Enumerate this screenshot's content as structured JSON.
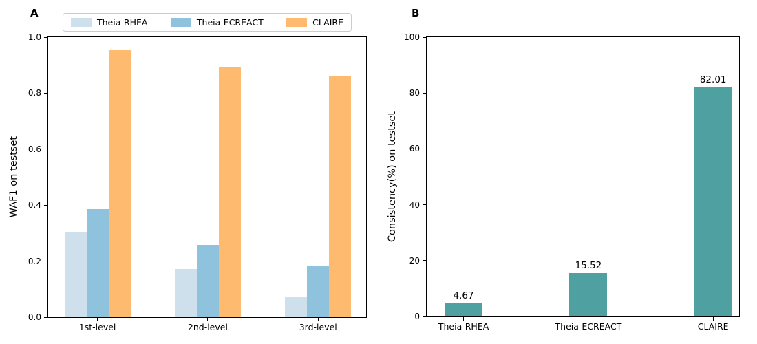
{
  "figure": {
    "background": "#ffffff",
    "spine_color": "#000000"
  },
  "chart_data": [
    {
      "type": "bar",
      "panel_label": "A",
      "title": "",
      "xlabel": "",
      "ylabel": "WAF1 on testset",
      "categories": [
        "1st-level",
        "2nd-level",
        "3rd-level"
      ],
      "series": [
        {
          "name": "Theia-RHEA",
          "color": "#cde0ec",
          "values": [
            0.305,
            0.171,
            0.072
          ]
        },
        {
          "name": "Theia-ECREACT",
          "color": "#8fc2dc",
          "values": [
            0.385,
            0.257,
            0.185
          ]
        },
        {
          "name": "CLAIRE",
          "color": "#febb70",
          "values": [
            0.956,
            0.895,
            0.86
          ]
        }
      ],
      "ylim": [
        0,
        1.0
      ],
      "yticks": [
        0.0,
        0.2,
        0.4,
        0.6,
        0.8,
        1.0
      ],
      "ytick_labels": [
        "0.0",
        "0.2",
        "0.4",
        "0.6",
        "0.8",
        "1.0"
      ],
      "grid": false,
      "legend_position": "top"
    },
    {
      "type": "bar",
      "panel_label": "B",
      "title": "",
      "xlabel": "",
      "ylabel": "Consistency(%) on testset",
      "categories": [
        "Theia-RHEA",
        "Theia-ECREACT",
        "CLAIRE"
      ],
      "series": [
        {
          "name": "Consistency(%)",
          "color": "#4fa0a0",
          "values": [
            4.67,
            15.52,
            82.01
          ]
        }
      ],
      "bar_labels": [
        "4.67",
        "15.52",
        "82.01"
      ],
      "ylim": [
        0,
        100
      ],
      "yticks": [
        0,
        20,
        40,
        60,
        80,
        100
      ],
      "ytick_labels": [
        "0",
        "20",
        "40",
        "60",
        "80",
        "100"
      ],
      "grid": false,
      "legend_position": "none"
    }
  ]
}
